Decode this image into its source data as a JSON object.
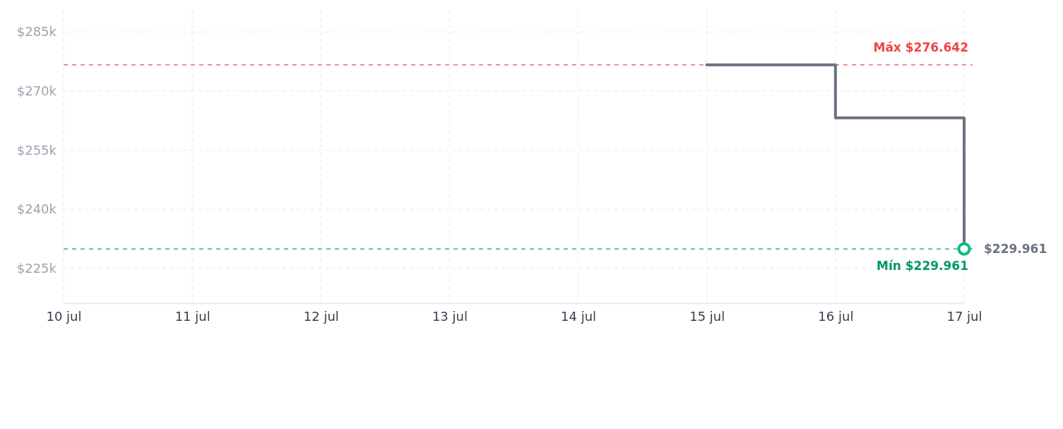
{
  "chart_data": {
    "type": "step",
    "xlim": [
      "--07-10",
      "--07-17"
    ],
    "xticks": [
      {
        "value": "--07-10",
        "label": "10 jul"
      },
      {
        "value": "--07-11",
        "label": "11 jul"
      },
      {
        "value": "--07-12",
        "label": "12 jul"
      },
      {
        "value": "--07-13",
        "label": "13 jul"
      },
      {
        "value": "--07-14",
        "label": "14 jul"
      },
      {
        "value": "--07-15",
        "label": "15 jul"
      },
      {
        "value": "--07-16",
        "label": "16 jul"
      },
      {
        "value": "--07-17",
        "label": "17 jul"
      }
    ],
    "ylim": [
      216200,
      290400
    ],
    "yticks": [
      {
        "value": 225000,
        "label": "$225k"
      },
      {
        "value": 240000,
        "label": "$240k"
      },
      {
        "value": 255000,
        "label": "$255k"
      },
      {
        "value": 270000,
        "label": "$270k"
      },
      {
        "value": 285000,
        "label": "$285k"
      }
    ],
    "grid": true,
    "series": [
      {
        "color": "#6b7280",
        "x": [
          "--07-15",
          "--07-16",
          "--07-17"
        ],
        "values": [
          276642,
          263200,
          229961
        ]
      },
      {
        "type": "scatter",
        "color": "#10b981",
        "marker": "circle",
        "x": [
          "--07-17"
        ],
        "values": [
          229961
        ]
      }
    ],
    "ref_lines": [
      {
        "axis": "y",
        "value": 276642,
        "label": "Máx $276.642",
        "color": "#ef4444",
        "line_style": "dashed"
      },
      {
        "axis": "y",
        "value": 229961,
        "label": "Mín $229.961",
        "color": "#059669",
        "line_style": "dashed"
      }
    ],
    "annotations": [
      {
        "text": "$229.961",
        "x": "--07-17",
        "y": 229961
      }
    ]
  }
}
